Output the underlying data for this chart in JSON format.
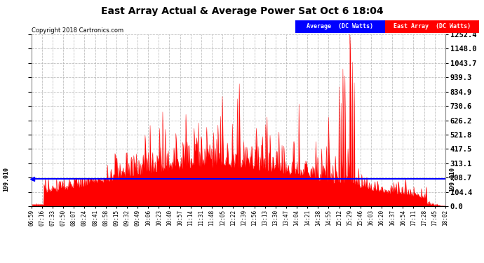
{
  "title": "East Array Actual & Average Power Sat Oct 6 18:04",
  "copyright": "Copyright 2018 Cartronics.com",
  "y_ticks": [
    0.0,
    104.4,
    208.7,
    313.1,
    417.5,
    521.8,
    626.2,
    730.6,
    834.9,
    939.3,
    1043.7,
    1148.0,
    1252.4
  ],
  "average_value": 199.01,
  "x_labels": [
    "06:59",
    "07:16",
    "07:33",
    "07:50",
    "08:07",
    "08:24",
    "08:41",
    "08:58",
    "09:15",
    "09:32",
    "09:49",
    "10:06",
    "10:23",
    "10:40",
    "10:57",
    "11:14",
    "11:31",
    "11:48",
    "12:05",
    "12:22",
    "12:39",
    "12:56",
    "13:13",
    "13:30",
    "13:47",
    "14:04",
    "14:21",
    "14:38",
    "14:55",
    "15:12",
    "15:29",
    "15:46",
    "16:03",
    "16:20",
    "16:37",
    "16:54",
    "17:11",
    "17:28",
    "17:45",
    "18:02"
  ],
  "legend_average_label": "Average  (DC Watts)",
  "legend_east_label": "East Array  (DC Watts)",
  "legend_average_bg": "#0000ff",
  "legend_east_bg": "#ff0000",
  "fill_color": "#ff0000",
  "line_color": "#ff0000",
  "average_line_color": "#0000ff",
  "background_color": "#ffffff",
  "grid_color": "#b0b0b0",
  "y_max": 1252.4,
  "y_min": 0.0
}
